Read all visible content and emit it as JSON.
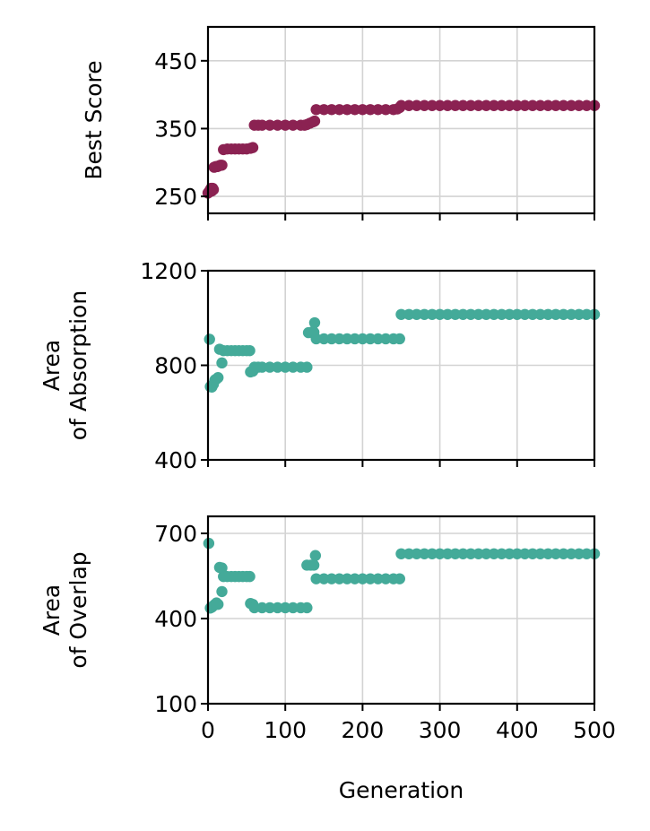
{
  "chart_data": [
    {
      "type": "scatter",
      "ylabel": [
        "Best Score"
      ],
      "color": "#8B2252",
      "xlim": [
        0,
        500
      ],
      "ylim": [
        225,
        500
      ],
      "yticks": [
        250,
        350,
        450
      ],
      "grid": true,
      "points": [
        [
          0,
          255
        ],
        [
          1,
          256
        ],
        [
          2,
          258
        ],
        [
          3,
          260
        ],
        [
          4,
          262
        ],
        [
          5,
          258
        ],
        [
          6,
          262
        ],
        [
          7,
          260
        ],
        [
          8,
          293
        ],
        [
          10,
          294
        ],
        [
          12,
          294
        ],
        [
          14,
          295
        ],
        [
          16,
          296
        ],
        [
          18,
          296
        ],
        [
          20,
          319
        ],
        [
          25,
          320
        ],
        [
          30,
          320
        ],
        [
          35,
          320
        ],
        [
          40,
          320
        ],
        [
          45,
          320
        ],
        [
          50,
          320
        ],
        [
          55,
          321
        ],
        [
          58,
          322
        ],
        [
          60,
          355
        ],
        [
          65,
          355
        ],
        [
          70,
          355
        ],
        [
          80,
          355
        ],
        [
          90,
          355
        ],
        [
          100,
          355
        ],
        [
          110,
          355
        ],
        [
          120,
          355
        ],
        [
          125,
          355
        ],
        [
          128,
          356
        ],
        [
          132,
          358
        ],
        [
          136,
          360
        ],
        [
          138,
          361
        ],
        [
          140,
          378
        ],
        [
          150,
          378
        ],
        [
          160,
          378
        ],
        [
          170,
          378
        ],
        [
          180,
          378
        ],
        [
          190,
          378
        ],
        [
          200,
          378
        ],
        [
          210,
          378
        ],
        [
          220,
          378
        ],
        [
          230,
          378
        ],
        [
          240,
          378
        ],
        [
          245,
          379
        ],
        [
          248,
          381
        ],
        [
          250,
          384
        ],
        [
          260,
          384
        ],
        [
          270,
          384
        ],
        [
          280,
          384
        ],
        [
          290,
          384
        ],
        [
          300,
          384
        ],
        [
          310,
          384
        ],
        [
          320,
          384
        ],
        [
          330,
          384
        ],
        [
          340,
          384
        ],
        [
          350,
          384
        ],
        [
          360,
          384
        ],
        [
          370,
          384
        ],
        [
          380,
          384
        ],
        [
          390,
          384
        ],
        [
          400,
          384
        ],
        [
          410,
          384
        ],
        [
          420,
          384
        ],
        [
          430,
          384
        ],
        [
          440,
          384
        ],
        [
          450,
          384
        ],
        [
          460,
          384
        ],
        [
          470,
          384
        ],
        [
          480,
          384
        ],
        [
          490,
          384
        ],
        [
          500,
          384
        ]
      ]
    },
    {
      "type": "scatter",
      "ylabel": [
        "Area",
        "of Absorption"
      ],
      "color": "#44AA99",
      "xlim": [
        0,
        500
      ],
      "ylim": [
        400,
        1200
      ],
      "yticks": [
        400,
        800,
        1200
      ],
      "grid": true,
      "points": [
        [
          2,
          910
        ],
        [
          3,
          710
        ],
        [
          5,
          708
        ],
        [
          7,
          720
        ],
        [
          9,
          738
        ],
        [
          11,
          742
        ],
        [
          13,
          748
        ],
        [
          15,
          868
        ],
        [
          20,
          862
        ],
        [
          25,
          862
        ],
        [
          30,
          862
        ],
        [
          35,
          862
        ],
        [
          40,
          862
        ],
        [
          45,
          862
        ],
        [
          50,
          862
        ],
        [
          54,
          862
        ],
        [
          18,
          810
        ],
        [
          55,
          772
        ],
        [
          58,
          775
        ],
        [
          60,
          792
        ],
        [
          65,
          792
        ],
        [
          70,
          792
        ],
        [
          80,
          792
        ],
        [
          90,
          792
        ],
        [
          100,
          792
        ],
        [
          110,
          792
        ],
        [
          120,
          792
        ],
        [
          128,
          792
        ],
        [
          130,
          938
        ],
        [
          134,
          940
        ],
        [
          137,
          940
        ],
        [
          138,
          980
        ],
        [
          140,
          912
        ],
        [
          150,
          912
        ],
        [
          160,
          912
        ],
        [
          170,
          912
        ],
        [
          180,
          912
        ],
        [
          190,
          912
        ],
        [
          200,
          912
        ],
        [
          210,
          912
        ],
        [
          220,
          912
        ],
        [
          230,
          912
        ],
        [
          240,
          912
        ],
        [
          248,
          912
        ],
        [
          250,
          1015
        ],
        [
          260,
          1015
        ],
        [
          270,
          1015
        ],
        [
          280,
          1015
        ],
        [
          290,
          1015
        ],
        [
          300,
          1015
        ],
        [
          310,
          1015
        ],
        [
          320,
          1015
        ],
        [
          330,
          1015
        ],
        [
          340,
          1015
        ],
        [
          350,
          1015
        ],
        [
          360,
          1015
        ],
        [
          370,
          1015
        ],
        [
          380,
          1015
        ],
        [
          390,
          1015
        ],
        [
          400,
          1015
        ],
        [
          410,
          1015
        ],
        [
          420,
          1015
        ],
        [
          430,
          1015
        ],
        [
          440,
          1015
        ],
        [
          450,
          1015
        ],
        [
          460,
          1015
        ],
        [
          470,
          1015
        ],
        [
          480,
          1015
        ],
        [
          490,
          1015
        ],
        [
          500,
          1015
        ]
      ]
    },
    {
      "type": "scatter",
      "ylabel": [
        "Area",
        "of Overlap"
      ],
      "color": "#44AA99",
      "xlim": [
        0,
        500
      ],
      "xlabel": "Generation",
      "xticks": [
        0,
        100,
        200,
        300,
        400,
        500
      ],
      "ylim": [
        100,
        760
      ],
      "yticks": [
        100,
        400,
        700
      ],
      "grid": true,
      "points": [
        [
          1,
          665
        ],
        [
          3,
          437
        ],
        [
          5,
          440
        ],
        [
          7,
          445
        ],
        [
          9,
          450
        ],
        [
          11,
          455
        ],
        [
          13,
          450
        ],
        [
          15,
          580
        ],
        [
          18,
          578
        ],
        [
          20,
          548
        ],
        [
          25,
          548
        ],
        [
          30,
          548
        ],
        [
          35,
          548
        ],
        [
          40,
          548
        ],
        [
          45,
          548
        ],
        [
          50,
          548
        ],
        [
          54,
          548
        ],
        [
          18,
          495
        ],
        [
          55,
          453
        ],
        [
          58,
          450
        ],
        [
          60,
          438
        ],
        [
          70,
          438
        ],
        [
          80,
          438
        ],
        [
          90,
          438
        ],
        [
          100,
          438
        ],
        [
          110,
          438
        ],
        [
          120,
          438
        ],
        [
          128,
          438
        ],
        [
          128,
          588
        ],
        [
          133,
          588
        ],
        [
          137,
          588
        ],
        [
          139,
          622
        ],
        [
          140,
          540
        ],
        [
          150,
          540
        ],
        [
          160,
          540
        ],
        [
          170,
          540
        ],
        [
          180,
          540
        ],
        [
          190,
          540
        ],
        [
          200,
          540
        ],
        [
          210,
          540
        ],
        [
          220,
          540
        ],
        [
          230,
          540
        ],
        [
          240,
          540
        ],
        [
          248,
          540
        ],
        [
          250,
          628
        ],
        [
          260,
          628
        ],
        [
          270,
          628
        ],
        [
          280,
          628
        ],
        [
          290,
          628
        ],
        [
          300,
          628
        ],
        [
          310,
          628
        ],
        [
          320,
          628
        ],
        [
          330,
          628
        ],
        [
          340,
          628
        ],
        [
          350,
          628
        ],
        [
          360,
          628
        ],
        [
          370,
          628
        ],
        [
          380,
          628
        ],
        [
          390,
          628
        ],
        [
          400,
          628
        ],
        [
          410,
          628
        ],
        [
          420,
          628
        ],
        [
          430,
          628
        ],
        [
          440,
          628
        ],
        [
          450,
          628
        ],
        [
          460,
          628
        ],
        [
          470,
          628
        ],
        [
          480,
          628
        ],
        [
          490,
          628
        ],
        [
          500,
          628
        ]
      ]
    }
  ]
}
